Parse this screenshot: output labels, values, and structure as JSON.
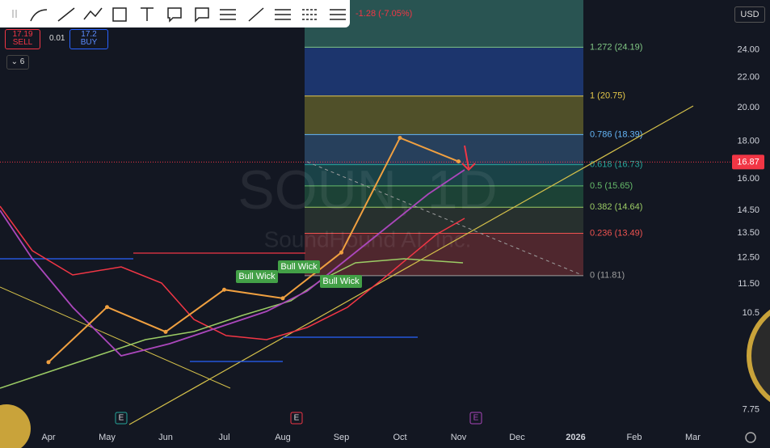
{
  "header": {
    "change": "-1.28 (-7.05%)",
    "currency": "USD",
    "sell_price": 17.19,
    "sell_label": "SELL",
    "spread": 0.01,
    "buy_price": 17.2,
    "buy_label": "BUY",
    "indicator_count": 6
  },
  "chart_data": {
    "type": "line",
    "title": "SOUN, 1D",
    "subtitle": "SoundHound AI, Inc.",
    "categories": [
      "Apr",
      "May",
      "Jun",
      "Jul",
      "Aug",
      "Sep",
      "Oct",
      "Nov",
      "Dec",
      "2026",
      "Feb",
      "Mar"
    ],
    "series": [
      {
        "name": "SOUN",
        "color": "#f0a040",
        "values": [
          9.0,
          10.7,
          9.9,
          11.3,
          11.0,
          12.7,
          18.2,
          16.9,
          null,
          null,
          null,
          null
        ]
      }
    ],
    "ylim": [
      7.4,
      27.7
    ],
    "log_scale": true,
    "yticks": [
      {
        "value": 24,
        "label": "24.00"
      },
      {
        "value": 22,
        "label": "22.00"
      },
      {
        "value": 20,
        "label": "20.00"
      },
      {
        "value": 18,
        "label": "18.00"
      },
      {
        "value": 16,
        "label": "16.00"
      },
      {
        "value": 14.5,
        "label": "14.50"
      },
      {
        "value": 13.5,
        "label": "13.50"
      },
      {
        "value": 12.5,
        "label": "12.50"
      },
      {
        "value": 11.5,
        "label": "11.50"
      },
      10.5,
      7.75
    ],
    "current_price": 16.87,
    "current_price_color": "#f23645",
    "fib_levels": [
      {
        "label": "1.272 (24.19)",
        "price": 24.19,
        "color": "#81c784"
      },
      {
        "label": "1 (20.75)",
        "price": 20.75,
        "color": "#e6c94a"
      },
      {
        "label": "0.786 (18.39)",
        "price": 18.39,
        "color": "#64b5f6"
      },
      {
        "label": "0.618 (16.73)",
        "price": 16.73,
        "color": "#26a69a"
      },
      {
        "label": "0.5 (15.65)",
        "price": 15.65,
        "color": "#66bb6a"
      },
      {
        "label": "0.382 (14.64)",
        "price": 14.64,
        "color": "#9ccc65"
      },
      {
        "label": "0.236 (13.49)",
        "price": 13.49,
        "color": "#ef5350"
      },
      {
        "label": "0 (11.81)",
        "price": 11.81,
        "color": "#9e9e9e"
      }
    ],
    "annotations": [
      "Bull Wick",
      "Bull Wick",
      "Bull Wick"
    ],
    "earnings": [
      "E",
      "E",
      "E"
    ]
  }
}
